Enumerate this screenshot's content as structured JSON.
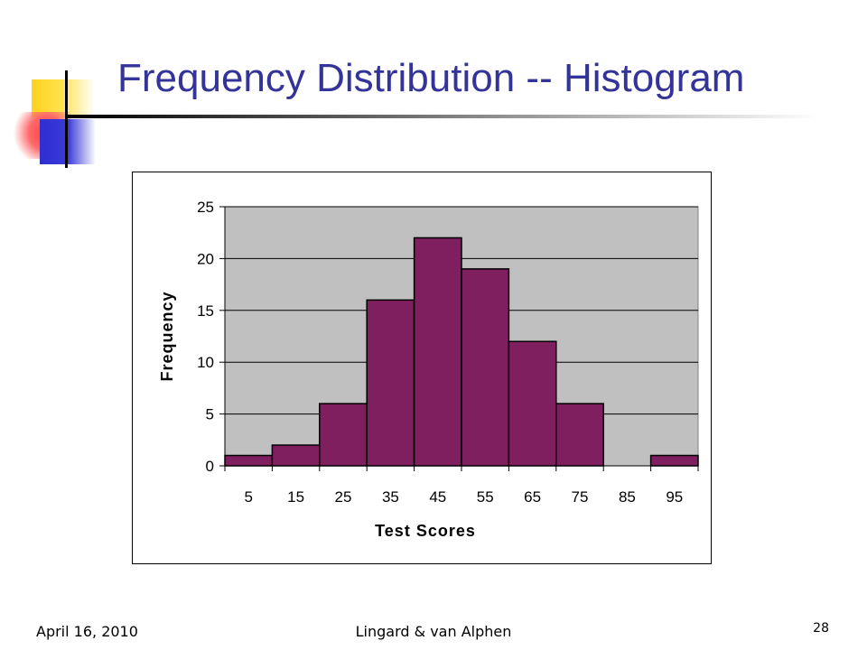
{
  "slide": {
    "title": "Frequency Distribution -- Histogram",
    "footer_date": "April 16, 2010",
    "footer_author": "Lingard & van Alphen",
    "page_number": "28"
  },
  "colors": {
    "title": "#333399",
    "bar_fill": "#7f1f5f",
    "plot_background": "#c0c0c0"
  },
  "chart_data": {
    "type": "bar",
    "title": "",
    "xlabel": "Test Scores",
    "ylabel": "Frequency",
    "categories": [
      "5",
      "15",
      "25",
      "35",
      "45",
      "55",
      "65",
      "75",
      "85",
      "95"
    ],
    "values": [
      1,
      2,
      6,
      16,
      22,
      19,
      12,
      6,
      0,
      1
    ],
    "ylim": [
      0,
      25
    ],
    "yticks": [
      "0",
      "5",
      "10",
      "15",
      "20",
      "25"
    ],
    "grid": true,
    "legend": "none"
  }
}
